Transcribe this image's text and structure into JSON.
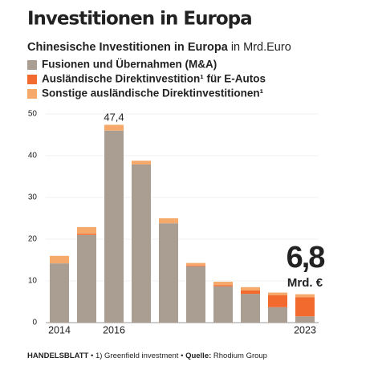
{
  "chart_data": {
    "type": "stacked-bar",
    "title": "Investitionen in Europa",
    "subtitle": "Chinesische Investitionen in Europa",
    "unit": "in Mrd.Euro",
    "categories": [
      "2014",
      null,
      "2016",
      null,
      null,
      null,
      null,
      null,
      null,
      "2023"
    ],
    "series": [
      {
        "name": "Fusionen und Übernahmen (M&A)",
        "color": "#aa9e93",
        "values": [
          14.2,
          21.0,
          46.0,
          37.9,
          23.8,
          13.5,
          8.7,
          6.9,
          3.7,
          1.5
        ]
      },
      {
        "name": "Ausländische Direktinvestition¹ für E-Autos",
        "color": "#f26a2e",
        "values": [
          0,
          0.3,
          0,
          0,
          0,
          0.2,
          0.3,
          0.8,
          2.9,
          4.6
        ]
      },
      {
        "name": "Sonstige ausländische Direktinvestitionen¹",
        "color": "#f5a96a",
        "values": [
          1.8,
          1.6,
          1.4,
          0.9,
          1.2,
          0.6,
          0.8,
          0.8,
          0.6,
          0.7
        ]
      }
    ],
    "ylim": [
      0,
      50
    ],
    "yticks": [
      0,
      10,
      20,
      30,
      40,
      50
    ],
    "grid": true,
    "annotations": [
      {
        "text": "47,4"
      },
      {
        "text": "6,8"
      },
      {
        "text": "Mrd. €"
      }
    ],
    "footer": {
      "brand": "HANDELSBLATT",
      "note": "• 1) Greenfield investment •",
      "source_label": "Quelle:",
      "source": "Rhodium Group"
    }
  }
}
